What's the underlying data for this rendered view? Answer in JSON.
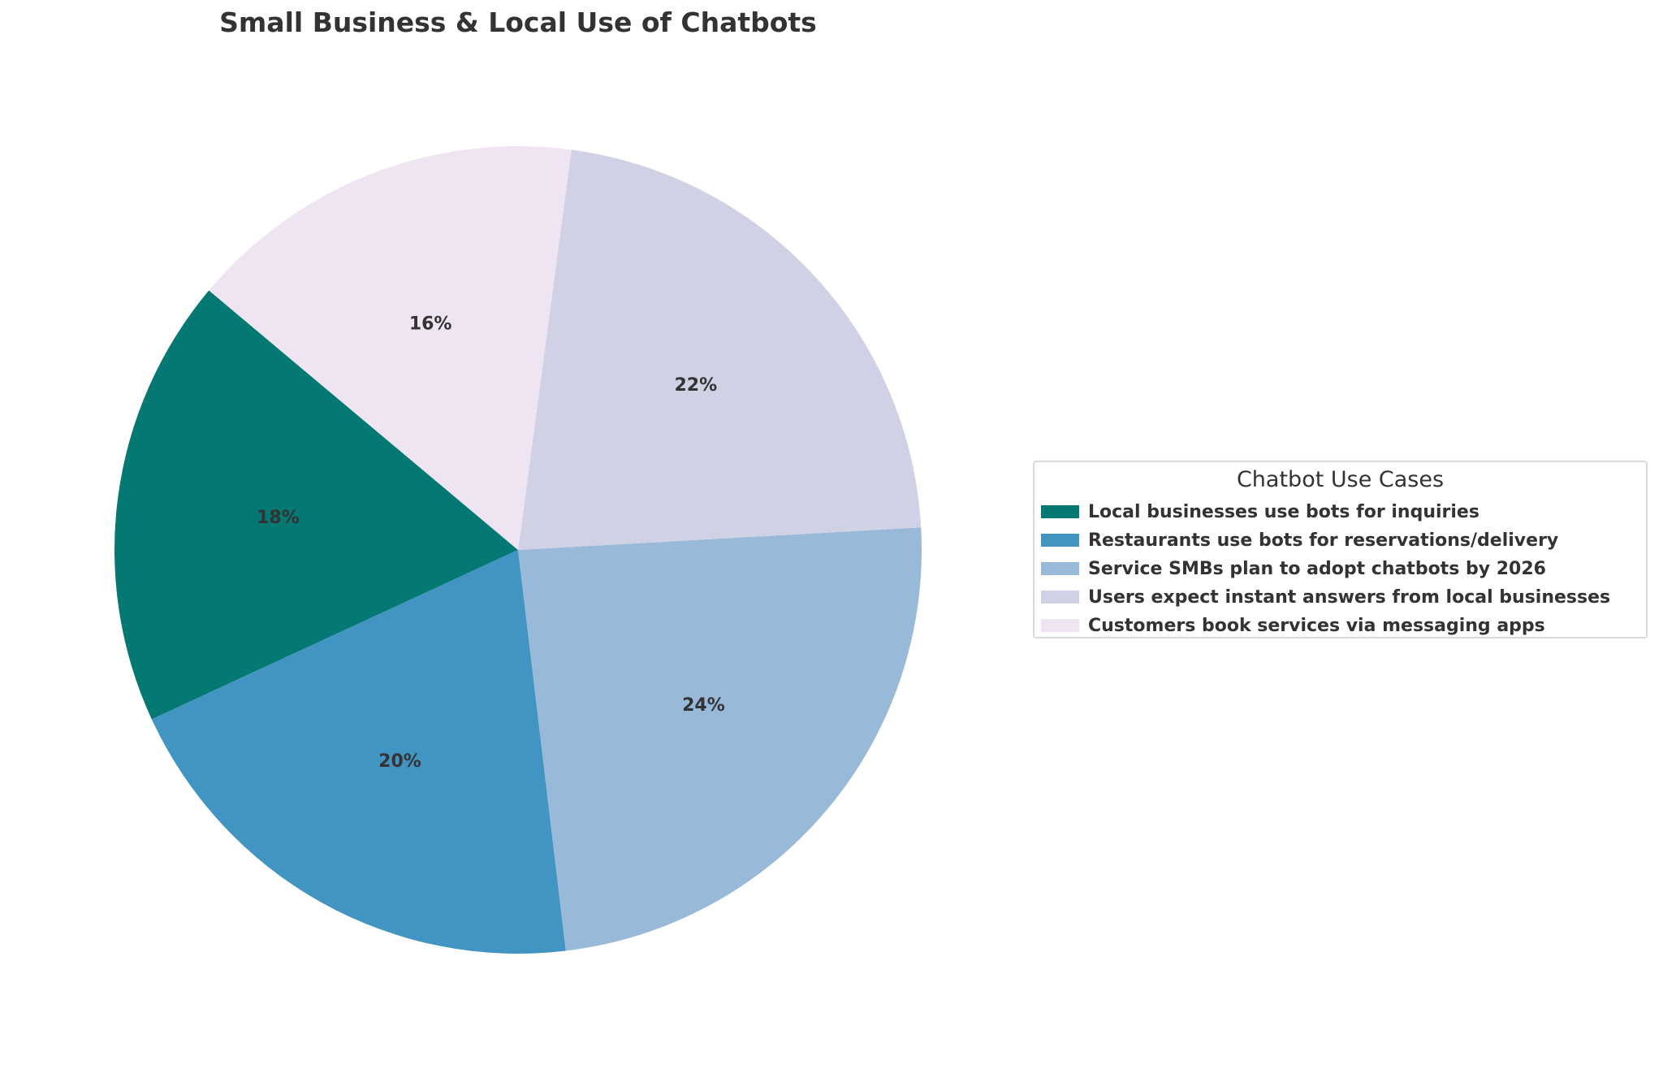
{
  "chart_data": {
    "type": "pie",
    "title": "Small Business & Local Use of Chatbots",
    "legend_title": "Chatbot Use Cases",
    "legend_position": "right",
    "start_angle_deg": 140,
    "direction": "counterclockwise",
    "categories": [
      "Local businesses use bots for inquiries",
      "Restaurants use bots for reservations/delivery",
      "Service SMBs plan to adopt chatbots by 2026",
      "Users expect instant answers from local businesses",
      "Customers book services via messaging apps"
    ],
    "values": [
      18,
      20,
      24,
      22,
      16
    ],
    "labels": [
      "18%",
      "20%",
      "24%",
      "22%",
      "16%"
    ],
    "colors": [
      "#047872",
      "#4295c3",
      "#99b9d9",
      "#d1d1e6",
      "#efe5f2"
    ]
  },
  "title": "Small Business & Local Use of Chatbots",
  "legend": {
    "title": "Chatbot Use Cases",
    "items": [
      {
        "label": "Local businesses use bots for inquiries",
        "color": "#047872"
      },
      {
        "label": "Restaurants use bots for reservations/delivery",
        "color": "#4295c3"
      },
      {
        "label": "Service SMBs plan to adopt chatbots by 2026",
        "color": "#99b9d9"
      },
      {
        "label": "Users expect instant answers from local businesses",
        "color": "#d1d1e6"
      },
      {
        "label": "Customers book services via messaging apps",
        "color": "#efe5f2"
      }
    ]
  }
}
